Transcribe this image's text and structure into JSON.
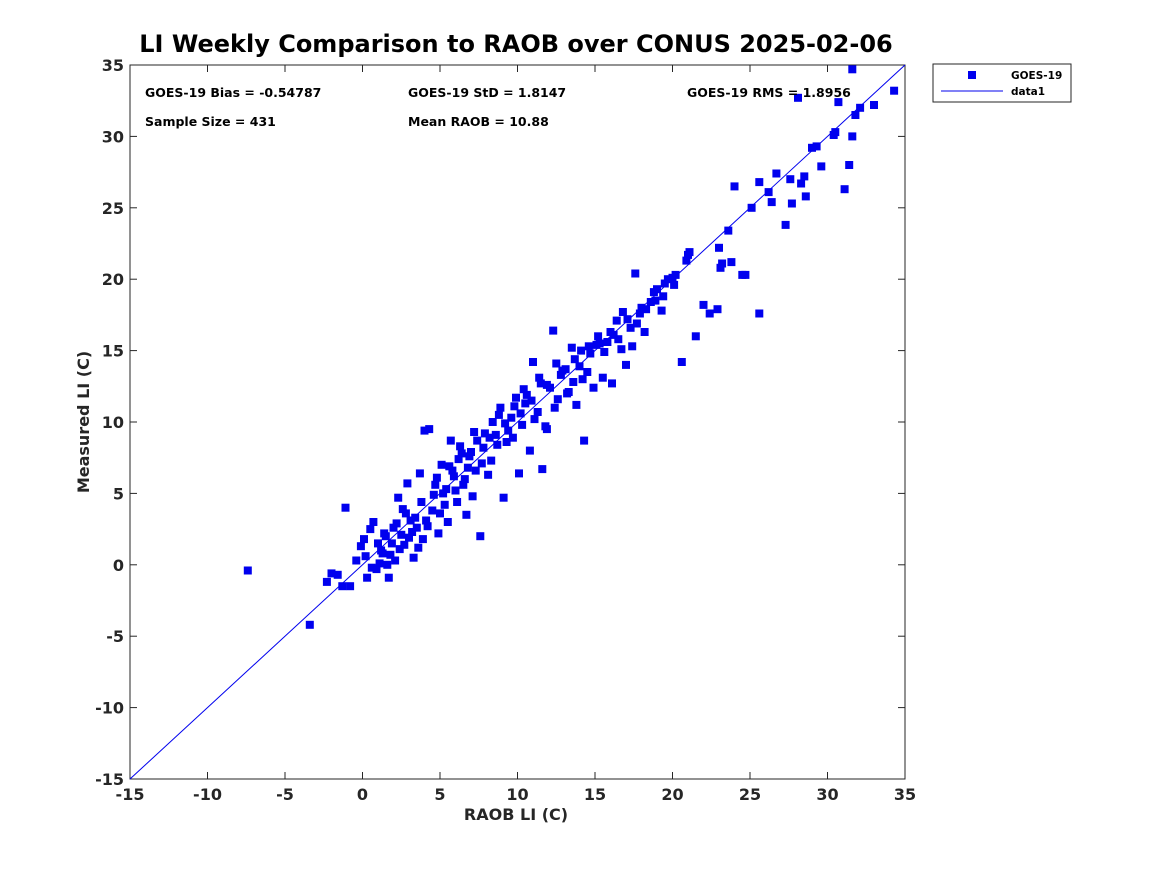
{
  "chart_data": {
    "type": "scatter",
    "title": "LI Weekly Comparison to RAOB over CONUS 2025-02-06",
    "xlabel": "RAOB LI (C)",
    "ylabel": "Measured LI (C)",
    "xlim": [
      -15,
      35
    ],
    "ylim": [
      -15,
      35
    ],
    "xticks": [
      "-15",
      "-10",
      "-5",
      "0",
      "5",
      "10",
      "15",
      "20",
      "25",
      "30",
      "35"
    ],
    "yticks": [
      "-15",
      "-10",
      "-5",
      "0",
      "5",
      "10",
      "15",
      "20",
      "25",
      "30",
      "35"
    ],
    "stats": {
      "bias": "GOES-19 Bias = -0.54787",
      "std": "GOES-19 StD = 1.8147",
      "rms": "GOES-19 RMS = 1.8956",
      "sample_size": "Sample Size = 431",
      "mean_raob": "Mean RAOB = 10.88"
    },
    "legend": {
      "position": "outside-top-right",
      "entries": [
        {
          "name": "GOES-19",
          "marker": "square"
        },
        {
          "name": "data1",
          "marker": "line"
        }
      ]
    },
    "reference_line": {
      "name": "data1",
      "x": [
        -15,
        35
      ],
      "y": [
        -15,
        35
      ]
    },
    "series": [
      {
        "name": "GOES-19",
        "color": "#0000ee",
        "points": [
          [
            -7.4,
            -0.4
          ],
          [
            -3.4,
            -4.2
          ],
          [
            -1.1,
            4.0
          ],
          [
            -2.3,
            -1.2
          ],
          [
            -2.0,
            -0.6
          ],
          [
            -1.6,
            -0.7
          ],
          [
            -1.3,
            -1.5
          ],
          [
            -0.8,
            -1.5
          ],
          [
            -0.4,
            0.3
          ],
          [
            -0.1,
            1.3
          ],
          [
            0.1,
            1.8
          ],
          [
            0.3,
            -0.9
          ],
          [
            0.5,
            2.5
          ],
          [
            0.7,
            3.0
          ],
          [
            0.9,
            -0.3
          ],
          [
            1.1,
            0.1
          ],
          [
            1.3,
            0.8
          ],
          [
            1.5,
            2.0
          ],
          [
            1.7,
            -0.9
          ],
          [
            1.9,
            1.5
          ],
          [
            2.1,
            0.3
          ],
          [
            2.3,
            4.7
          ],
          [
            2.5,
            2.1
          ],
          [
            2.7,
            1.4
          ],
          [
            2.9,
            5.7
          ],
          [
            3.1,
            3.1
          ],
          [
            3.3,
            0.5
          ],
          [
            3.5,
            2.6
          ],
          [
            3.7,
            6.4
          ],
          [
            3.9,
            1.8
          ],
          [
            4.0,
            9.4
          ],
          [
            4.3,
            9.5
          ],
          [
            4.5,
            3.8
          ],
          [
            4.7,
            5.6
          ],
          [
            4.9,
            2.2
          ],
          [
            5.1,
            7.0
          ],
          [
            5.3,
            4.2
          ],
          [
            5.5,
            3.0
          ],
          [
            5.7,
            8.7
          ],
          [
            5.9,
            6.2
          ],
          [
            6.1,
            4.4
          ],
          [
            6.3,
            8.3
          ],
          [
            6.5,
            5.6
          ],
          [
            6.7,
            3.5
          ],
          [
            6.9,
            7.6
          ],
          [
            7.1,
            4.8
          ],
          [
            7.3,
            6.6
          ],
          [
            7.6,
            2.0
          ],
          [
            7.8,
            8.2
          ],
          [
            8.1,
            6.3
          ],
          [
            8.4,
            10.0
          ],
          [
            8.6,
            9.1
          ],
          [
            8.9,
            11.0
          ],
          [
            9.1,
            4.7
          ],
          [
            9.3,
            8.6
          ],
          [
            9.6,
            10.3
          ],
          [
            9.9,
            11.7
          ],
          [
            10.1,
            6.4
          ],
          [
            10.3,
            9.8
          ],
          [
            10.5,
            11.3
          ],
          [
            10.8,
            8.0
          ],
          [
            11.0,
            14.2
          ],
          [
            11.3,
            10.7
          ],
          [
            11.6,
            6.7
          ],
          [
            11.8,
            9.7
          ],
          [
            12.1,
            12.4
          ],
          [
            12.3,
            16.4
          ],
          [
            12.6,
            11.6
          ],
          [
            12.9,
            13.6
          ],
          [
            13.2,
            12.0
          ],
          [
            13.5,
            15.2
          ],
          [
            13.8,
            11.2
          ],
          [
            14.0,
            13.9
          ],
          [
            14.3,
            8.7
          ],
          [
            14.6,
            15.3
          ],
          [
            14.9,
            12.4
          ],
          [
            15.2,
            16.0
          ],
          [
            15.5,
            13.1
          ],
          [
            15.8,
            15.6
          ],
          [
            16.1,
            12.7
          ],
          [
            16.4,
            17.1
          ],
          [
            16.7,
            15.1
          ],
          [
            17.0,
            14.0
          ],
          [
            17.3,
            16.6
          ],
          [
            17.6,
            20.4
          ],
          [
            17.9,
            17.6
          ],
          [
            18.2,
            16.3
          ],
          [
            18.6,
            18.4
          ],
          [
            19.0,
            19.3
          ],
          [
            19.3,
            17.8
          ],
          [
            19.7,
            20.0
          ],
          [
            20.1,
            19.6
          ],
          [
            20.6,
            14.2
          ],
          [
            21.0,
            21.7
          ],
          [
            21.5,
            16.0
          ],
          [
            22.0,
            18.2
          ],
          [
            22.4,
            17.6
          ],
          [
            22.9,
            17.9
          ],
          [
            23.2,
            21.1
          ],
          [
            23.6,
            23.4
          ],
          [
            24.0,
            26.5
          ],
          [
            24.5,
            20.3
          ],
          [
            25.1,
            25.0
          ],
          [
            25.6,
            17.6
          ],
          [
            26.2,
            26.1
          ],
          [
            26.7,
            27.4
          ],
          [
            27.3,
            23.8
          ],
          [
            27.7,
            25.3
          ],
          [
            28.1,
            32.7
          ],
          [
            28.5,
            27.2
          ],
          [
            29.0,
            29.2
          ],
          [
            29.6,
            27.9
          ],
          [
            30.4,
            30.1
          ],
          [
            30.7,
            32.4
          ],
          [
            31.1,
            26.3
          ],
          [
            31.4,
            28.0
          ],
          [
            31.6,
            34.7
          ],
          [
            31.8,
            31.5
          ],
          [
            32.1,
            32.0
          ],
          [
            33.0,
            32.2
          ],
          [
            34.3,
            33.2
          ],
          [
            1.2,
            1.0
          ],
          [
            1.6,
            0.0
          ],
          [
            2.0,
            2.6
          ],
          [
            2.4,
            1.1
          ],
          [
            2.8,
            3.6
          ],
          [
            3.2,
            2.3
          ],
          [
            3.6,
            1.2
          ],
          [
            4.1,
            3.1
          ],
          [
            4.6,
            4.9
          ],
          [
            5.0,
            3.6
          ],
          [
            5.4,
            5.3
          ],
          [
            5.8,
            6.6
          ],
          [
            6.2,
            7.4
          ],
          [
            6.6,
            6.0
          ],
          [
            7.0,
            7.9
          ],
          [
            7.4,
            8.7
          ],
          [
            7.9,
            9.2
          ],
          [
            8.3,
            7.3
          ],
          [
            8.7,
            8.4
          ],
          [
            9.2,
            9.9
          ],
          [
            9.7,
            8.9
          ],
          [
            10.2,
            10.6
          ],
          [
            10.6,
            11.9
          ],
          [
            11.1,
            10.2
          ],
          [
            11.5,
            12.7
          ],
          [
            11.9,
            9.5
          ],
          [
            12.4,
            11.0
          ],
          [
            12.8,
            13.3
          ],
          [
            13.3,
            12.1
          ],
          [
            13.7,
            14.4
          ],
          [
            14.2,
            13.0
          ],
          [
            14.7,
            14.8
          ],
          [
            15.1,
            15.4
          ],
          [
            15.6,
            14.9
          ],
          [
            16.0,
            16.3
          ],
          [
            16.5,
            15.8
          ],
          [
            17.1,
            17.2
          ],
          [
            17.7,
            16.9
          ],
          [
            18.3,
            17.9
          ],
          [
            18.9,
            18.5
          ],
          [
            19.5,
            19.7
          ],
          [
            20.2,
            20.3
          ],
          [
            20.9,
            21.3
          ],
          [
            0.2,
            0.6
          ],
          [
            0.6,
            -0.2
          ],
          [
            1.0,
            1.5
          ],
          [
            1.4,
            2.2
          ],
          [
            1.8,
            0.7
          ],
          [
            2.2,
            2.9
          ],
          [
            2.6,
            3.9
          ],
          [
            3.0,
            1.9
          ],
          [
            3.4,
            3.3
          ],
          [
            3.8,
            4.4
          ],
          [
            4.2,
            2.7
          ],
          [
            4.8,
            6.1
          ],
          [
            5.2,
            5.0
          ],
          [
            5.6,
            6.9
          ],
          [
            6.0,
            5.2
          ],
          [
            6.4,
            7.8
          ],
          [
            6.8,
            6.8
          ],
          [
            7.2,
            9.3
          ],
          [
            7.7,
            7.1
          ],
          [
            8.2,
            8.9
          ],
          [
            8.8,
            10.5
          ],
          [
            9.4,
            9.4
          ],
          [
            9.8,
            11.1
          ],
          [
            10.4,
            12.3
          ],
          [
            10.9,
            11.5
          ],
          [
            11.4,
            13.1
          ],
          [
            11.9,
            12.6
          ],
          [
            12.5,
            14.1
          ],
          [
            13.1,
            13.7
          ],
          [
            13.6,
            12.8
          ],
          [
            14.1,
            15.0
          ],
          [
            14.5,
            13.5
          ],
          [
            15.3,
            15.5
          ],
          [
            16.2,
            16.1
          ],
          [
            16.8,
            17.7
          ],
          [
            17.4,
            15.3
          ],
          [
            18.0,
            18.0
          ],
          [
            18.8,
            19.1
          ],
          [
            19.4,
            18.8
          ],
          [
            20.0,
            20.1
          ],
          [
            21.1,
            21.9
          ],
          [
            23.0,
            22.2
          ],
          [
            23.1,
            20.8
          ],
          [
            23.8,
            21.2
          ],
          [
            24.7,
            20.3
          ],
          [
            25.6,
            26.8
          ],
          [
            26.4,
            25.4
          ],
          [
            27.6,
            27.0
          ],
          [
            28.3,
            26.7
          ],
          [
            28.6,
            25.8
          ],
          [
            29.3,
            29.3
          ],
          [
            30.5,
            30.3
          ],
          [
            31.6,
            30.0
          ]
        ]
      }
    ]
  }
}
